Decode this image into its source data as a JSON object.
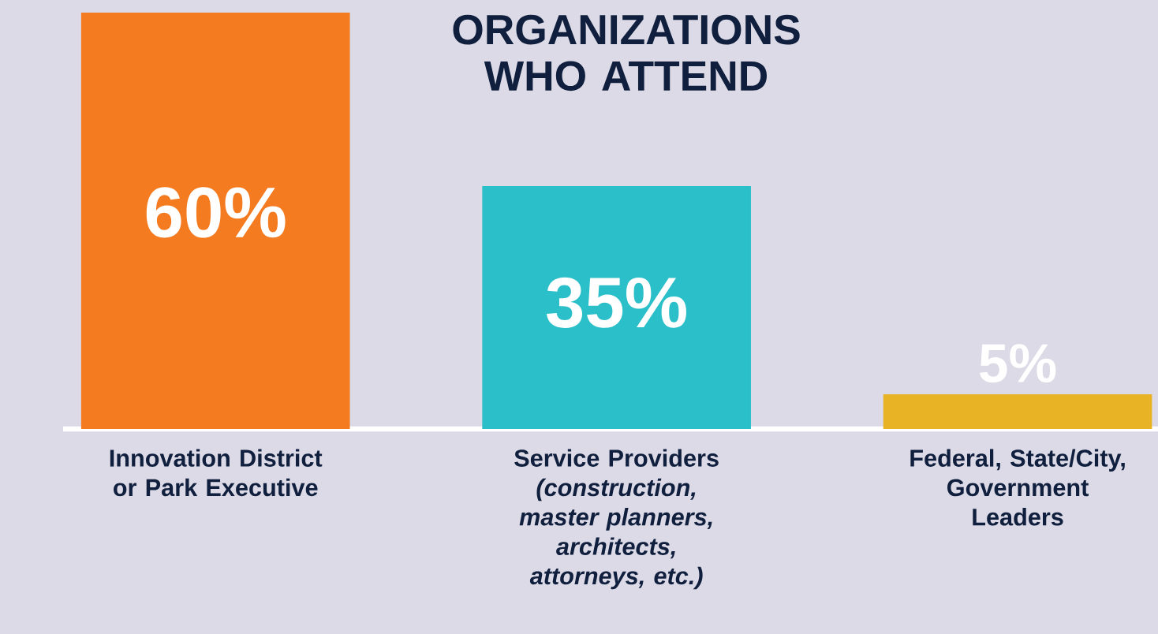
{
  "chart_data": {
    "type": "bar",
    "title": "ORGANIZATIONS WHO ATTEND",
    "categories": [
      "Innovation District or Park Executive",
      "Service Providers *(construction, master planners, architects, attorneys, etc.)*",
      "Federal, State/City, Government Leaders"
    ],
    "values": [
      60,
      35,
      5
    ],
    "colors": [
      "#f47b20",
      "#2bbfc9",
      "#e8b325"
    ],
    "value_labels": [
      "60%",
      "35%",
      "5%"
    ]
  }
}
